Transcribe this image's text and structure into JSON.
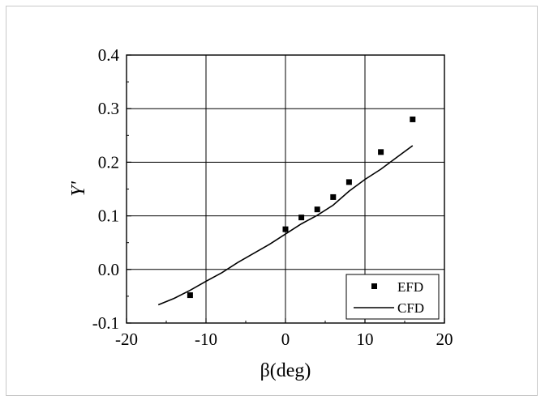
{
  "chart_data": {
    "type": "scatter",
    "xlabel": "β(deg)",
    "ylabel": "Y'",
    "xlim": [
      -20,
      20
    ],
    "ylim": [
      -0.1,
      0.4
    ],
    "xticks": [
      "-20",
      "-10",
      "0",
      "10",
      "20"
    ],
    "yticks": [
      "-0.1",
      "0.0",
      "0.1",
      "0.2",
      "0.3",
      "0.4"
    ],
    "grid": true,
    "legend_position": "bottom-right",
    "series": [
      {
        "name": "EFD",
        "kind": "scatter",
        "marker": "square",
        "color": "#000000",
        "x": [
          -12,
          0,
          2,
          4,
          6,
          8,
          12,
          16
        ],
        "y": [
          -0.048,
          0.075,
          0.097,
          0.112,
          0.135,
          0.163,
          0.219,
          0.28
        ]
      },
      {
        "name": "CFD",
        "kind": "line",
        "color": "#000000",
        "x": [
          -16,
          -14,
          -12,
          -10,
          -8,
          -6,
          -4,
          -2,
          0,
          2,
          4,
          6,
          8,
          10,
          12,
          14,
          16
        ],
        "y": [
          -0.066,
          -0.054,
          -0.039,
          -0.022,
          -0.006,
          0.013,
          0.03,
          0.047,
          0.066,
          0.085,
          0.101,
          0.12,
          0.146,
          0.168,
          0.187,
          0.209,
          0.231
        ]
      }
    ]
  }
}
